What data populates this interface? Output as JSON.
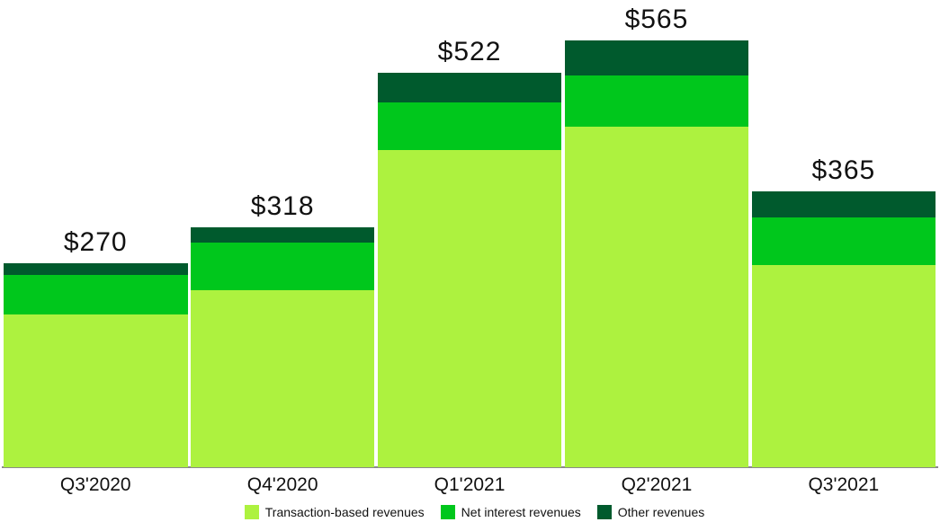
{
  "chart_data": {
    "type": "bar",
    "stacked": true,
    "title": "",
    "xlabel": "",
    "ylabel": "",
    "grid": false,
    "legend_position": "bottom",
    "background_color": "#FFFFFF",
    "axis_line_color": "#8A8A8A",
    "label_color": "#111111",
    "categories": [
      "Q3'2020",
      "Q4'2020",
      "Q1'2021",
      "Q2'2021",
      "Q3'2021"
    ],
    "series": [
      {
        "name": "Transaction-based revenues",
        "color": "#ADF23F",
        "values": [
          202,
          235,
          420,
          451,
          267
        ]
      },
      {
        "name": "Net interest revenues",
        "color": "#00C71C",
        "values": [
          52,
          63,
          63,
          68,
          63
        ]
      },
      {
        "name": "Other revenues",
        "color": "#005A2D",
        "values": [
          16,
          20,
          39,
          46,
          35
        ]
      }
    ],
    "totals": [
      270,
      318,
      522,
      565,
      365
    ],
    "total_labels": [
      "$270",
      "$318",
      "$522",
      "$565",
      "$365"
    ]
  }
}
